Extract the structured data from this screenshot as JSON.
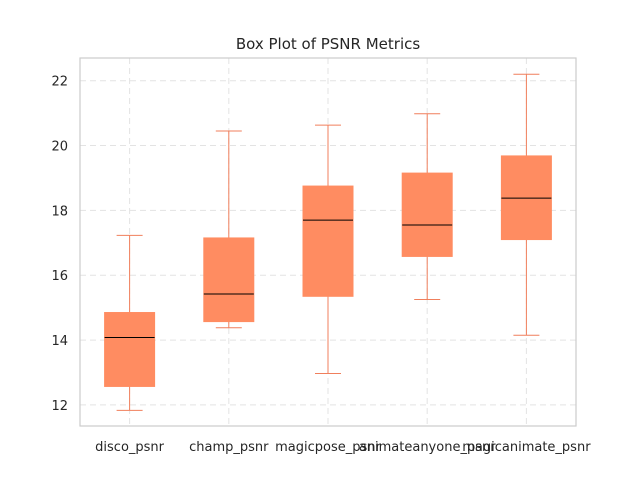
{
  "chart_data": {
    "type": "box",
    "title": "Box Plot of PSNR Metrics",
    "xlabel": "",
    "ylabel": "",
    "ylim": [
      11.35,
      22.7
    ],
    "yticks": [
      12,
      14,
      16,
      18,
      20,
      22
    ],
    "ytick_labels": [
      "12",
      "14",
      "16",
      "18",
      "20",
      "22"
    ],
    "grid": true,
    "legend": "none",
    "categories": [
      "disco_psnr",
      "champ_psnr",
      "magicpose_psnr",
      "animateanyone_psnr",
      "magicanimate_psnr"
    ],
    "boxes": [
      {
        "whisker_low": 11.83,
        "q1": 12.57,
        "median": 14.08,
        "q3": 14.85,
        "whisker_high": 17.23
      },
      {
        "whisker_low": 14.38,
        "q1": 14.57,
        "median": 15.42,
        "q3": 17.15,
        "whisker_high": 20.45
      },
      {
        "whisker_low": 12.97,
        "q1": 15.35,
        "median": 17.7,
        "q3": 18.75,
        "whisker_high": 20.63
      },
      {
        "whisker_low": 15.25,
        "q1": 16.58,
        "median": 17.55,
        "q3": 19.15,
        "whisker_high": 20.98
      },
      {
        "whisker_low": 14.15,
        "q1": 17.1,
        "median": 18.38,
        "q3": 19.68,
        "whisker_high": 22.2
      }
    ],
    "colors": {
      "box_fill": "#FF8C61",
      "whisker": "#F07F5C",
      "median": "#000000",
      "grid": "#E3E3E3",
      "spine": "#CCCCCC"
    }
  }
}
